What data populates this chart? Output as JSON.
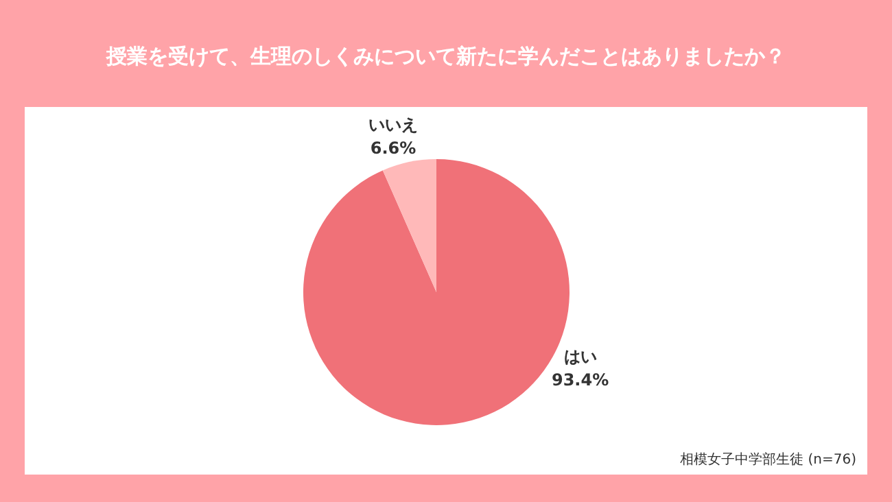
{
  "chart_data": {
    "type": "pie",
    "title": "授業を受けて、生理のしくみについて新たに学んだことはありましたか？",
    "categories": [
      "はい",
      "いいえ"
    ],
    "values": [
      93.4,
      6.6
    ],
    "value_labels": [
      "93.4%",
      "6.6%"
    ],
    "colors": [
      "#f07178",
      "#ffb9b9"
    ],
    "annotations": [
      "相模女子中学部生徒 (n=76)"
    ]
  }
}
